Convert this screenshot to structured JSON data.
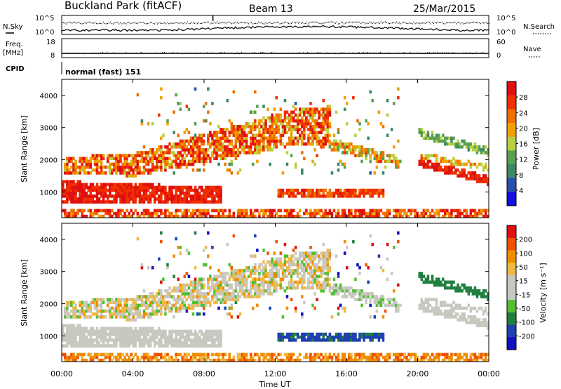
{
  "header": {
    "site": "Buckland Park (fitACF)",
    "beam": "Beam 13",
    "date": "25/Mar/2015"
  },
  "noise_panel": {
    "left_label": "N.Sky",
    "left_ticks": [
      "10^5",
      "10^0"
    ],
    "right_label": "N.Search",
    "right_ticks": [
      "10^5",
      "10^0"
    ]
  },
  "freq_panel": {
    "left_label_line1": "Freq.",
    "left_label_line2": "[MHz]",
    "left_ticks": [
      "18",
      "8"
    ],
    "right_label": "Nave",
    "right_ticks": [
      "60",
      "0"
    ]
  },
  "cpid": {
    "label": "CPID",
    "value": "normal (fast) 151"
  },
  "colors": {
    "power_scale": [
      "#1010e0",
      "#2850b0",
      "#3a8a64",
      "#5aa050",
      "#b8d040",
      "#f0a000",
      "#f07000",
      "#f03000",
      "#e01010"
    ],
    "velocity_scale": [
      "#e01010",
      "#f05000",
      "#f08c00",
      "#f0b840",
      "#c8c8c0",
      "#c8c8c0",
      "#50c030",
      "#208040",
      "#2040b0",
      "#1010c0"
    ]
  },
  "chart_data": [
    {
      "type": "heatmap",
      "name": "power",
      "ylabel": "Slant Range [km]",
      "yticks": [
        "1000",
        "2000",
        "3000",
        "4000"
      ],
      "ylim": [
        200,
        4500
      ],
      "xlim": [
        0,
        24
      ],
      "colorbar": {
        "label": "Power [dB]",
        "ticks": [
          "4",
          "8",
          "12",
          "16",
          "20",
          "24",
          "28"
        ]
      }
    },
    {
      "type": "heatmap",
      "name": "velocity",
      "ylabel": "Slant Range [km]",
      "yticks": [
        "1000",
        "2000",
        "3000",
        "4000"
      ],
      "ylim": [
        200,
        4500
      ],
      "xlim": [
        0,
        24
      ],
      "xlabel": "Time UT",
      "xticks": [
        "00:00",
        "04:00",
        "08:00",
        "12:00",
        "16:00",
        "20:00",
        "00:00"
      ],
      "colorbar": {
        "label": "Velocity [m s⁻¹]",
        "ticks": [
          "200",
          "100",
          "50",
          "15",
          "-15",
          "-50",
          "-100",
          "-200"
        ]
      }
    }
  ]
}
